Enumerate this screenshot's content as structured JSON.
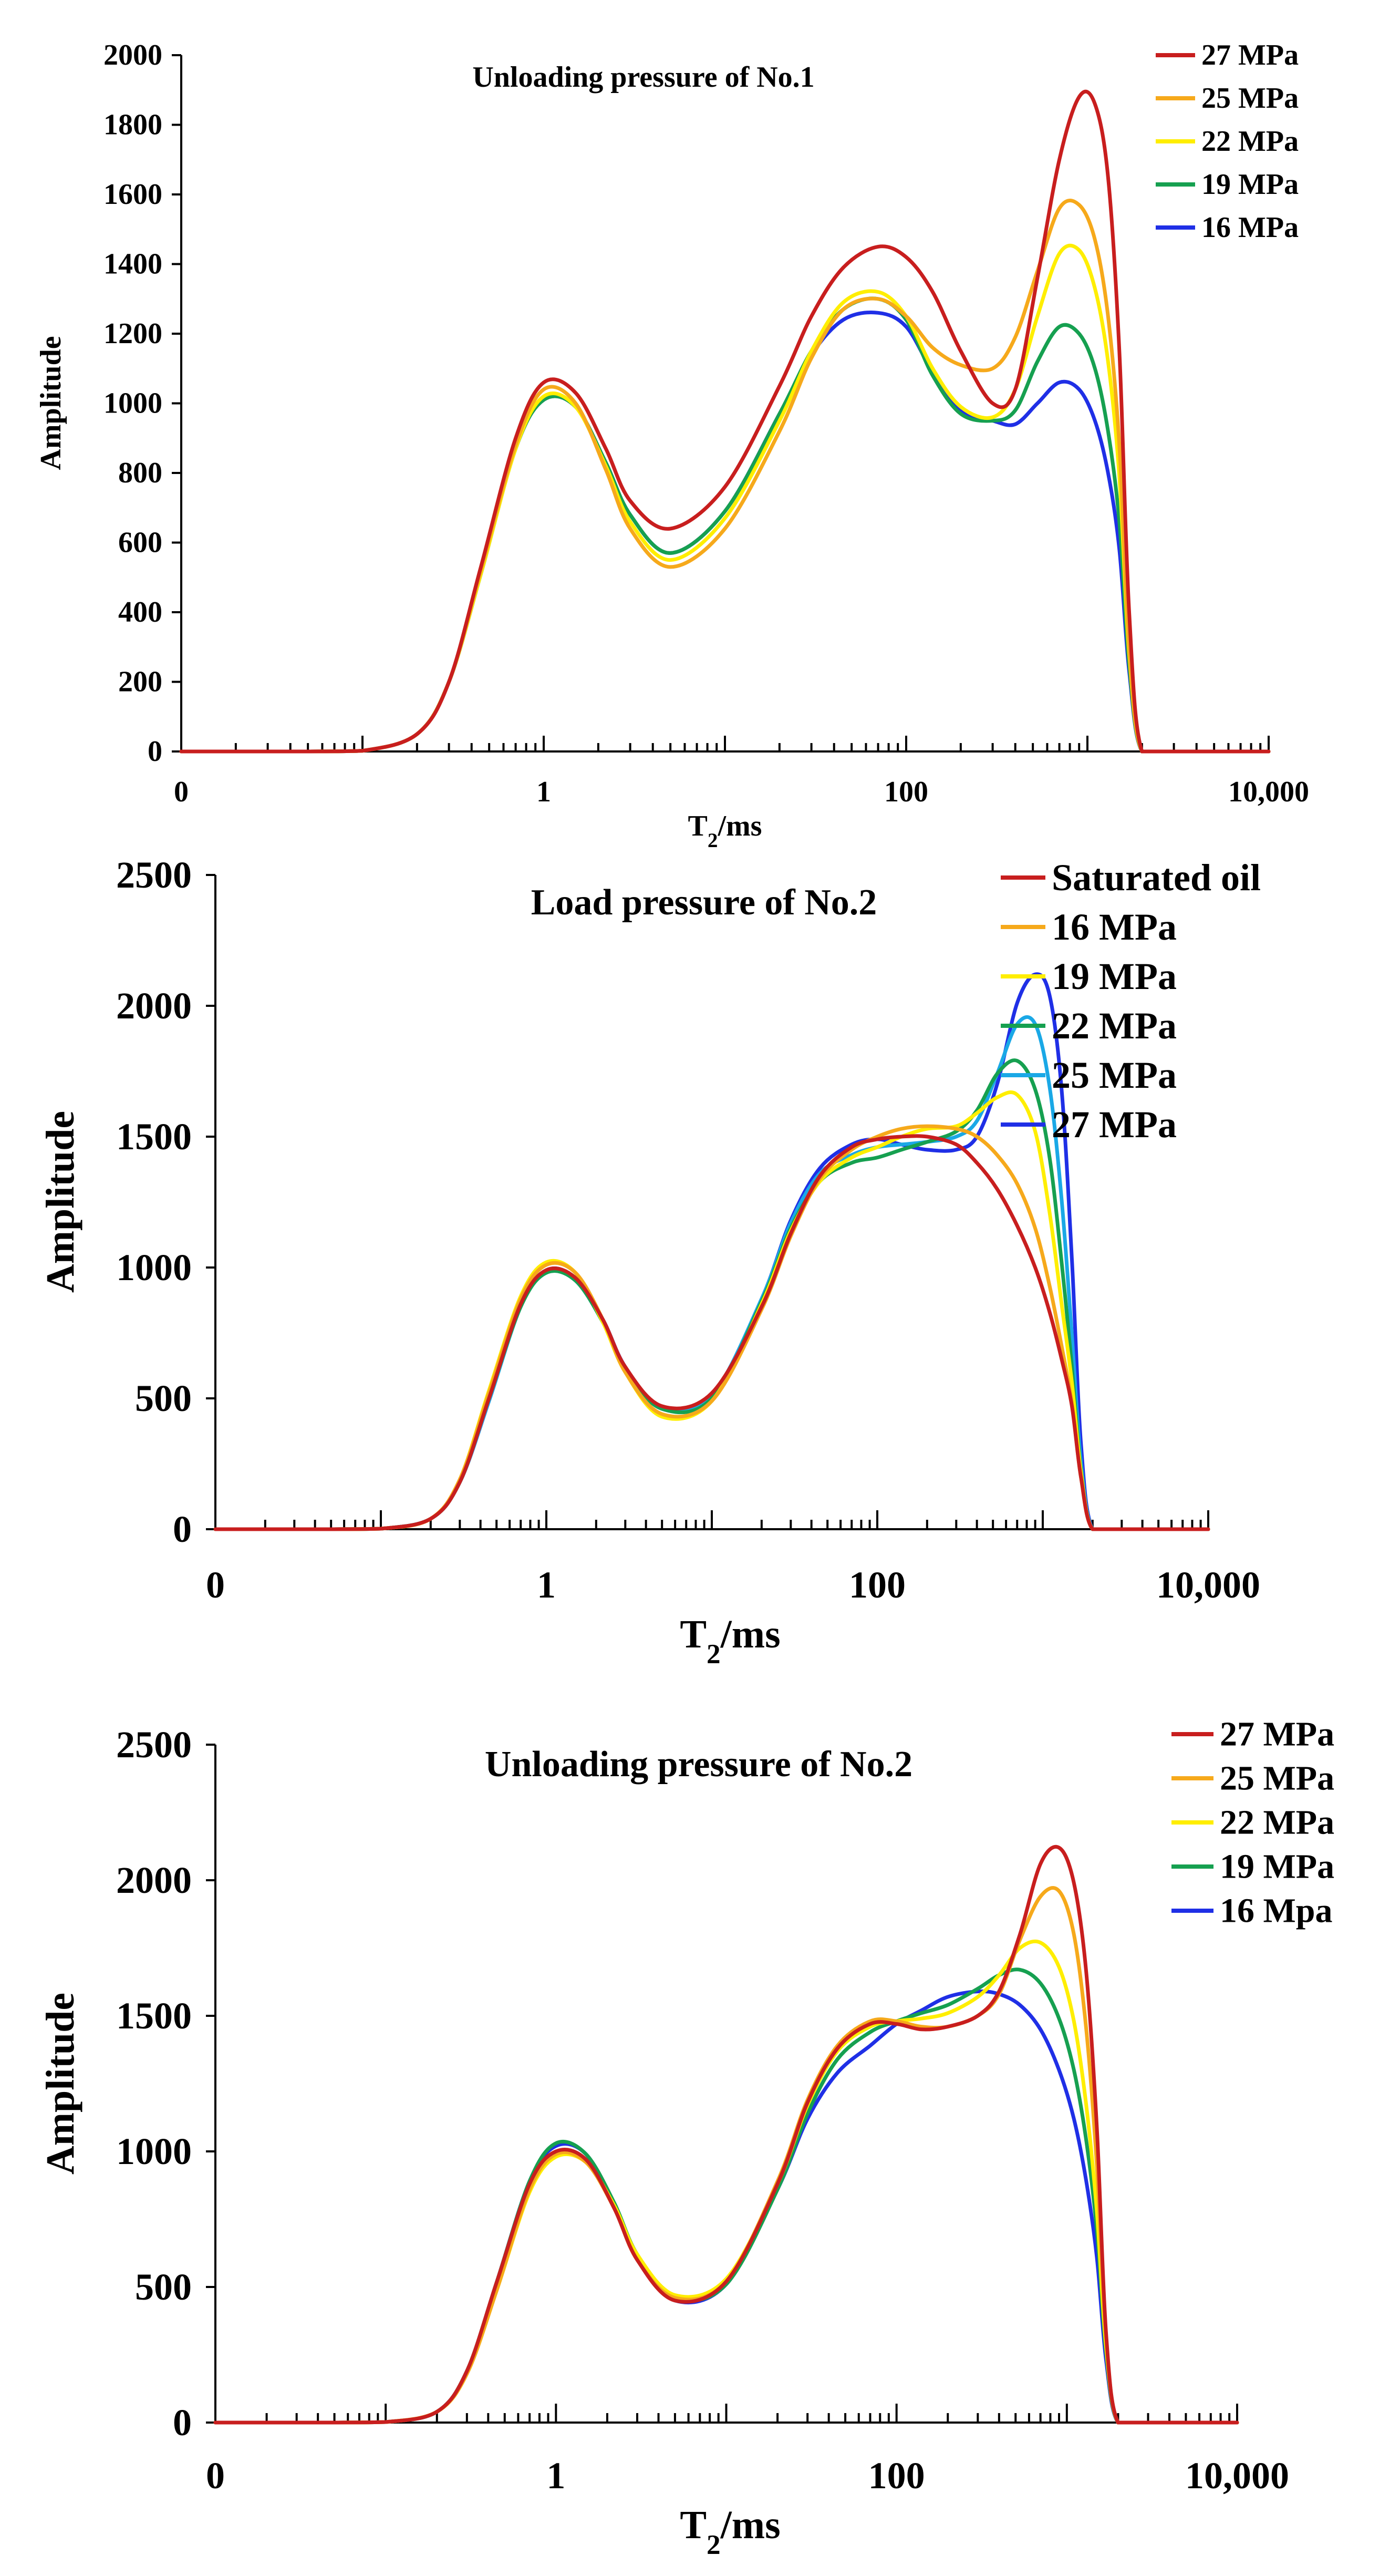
{
  "chart_data": [
    {
      "type": "line",
      "title": "Unloading pressure of No.1",
      "xlabel": "T₂/ms",
      "ylabel": "Amplitude",
      "xscale": "log",
      "xlim": [
        0.01,
        10000
      ],
      "ylim": [
        0,
        2000
      ],
      "xticks": [
        0.01,
        1,
        100,
        10000
      ],
      "xtick_labels": [
        "0",
        "1",
        "100",
        "10,000"
      ],
      "yticks": [
        0,
        200,
        400,
        600,
        800,
        1000,
        1200,
        1400,
        1600,
        1800,
        2000
      ],
      "ytick_labels": [
        "0",
        "200",
        "400",
        "600",
        "800",
        "1000",
        "1200",
        "1400",
        "1600",
        "1800",
        "2000"
      ],
      "grid": false,
      "legend_position": "top-right",
      "x": [
        0.01,
        0.02,
        0.03,
        0.05,
        0.1,
        0.2,
        0.3,
        0.45,
        0.7,
        1,
        1.5,
        2.2,
        3,
        5,
        10,
        20,
        30,
        45,
        70,
        100,
        140,
        200,
        300,
        400,
        530,
        700,
        900,
        1100,
        1300,
        1500,
        1700,
        2000,
        3000,
        5000,
        10000
      ],
      "series": [
        {
          "name": "27 MPa",
          "color": "#c81e1e",
          "values": [
            0,
            0,
            0,
            0,
            2,
            50,
            200,
            530,
            900,
            1060,
            1030,
            870,
            720,
            640,
            760,
            1050,
            1250,
            1390,
            1450,
            1420,
            1320,
            1150,
            1000,
            1040,
            1360,
            1700,
            1880,
            1860,
            1650,
            1150,
            400,
            0,
            0,
            0,
            0
          ]
        },
        {
          "name": "25 MPa",
          "color": "#f6a91b",
          "values": [
            0,
            0,
            0,
            0,
            2,
            50,
            200,
            520,
            880,
            1040,
            1000,
            810,
            640,
            530,
            640,
            920,
            1130,
            1270,
            1300,
            1250,
            1160,
            1110,
            1100,
            1190,
            1380,
            1560,
            1570,
            1470,
            1250,
            880,
            300,
            0,
            0,
            0,
            0
          ]
        },
        {
          "name": "22 MPa",
          "color": "#ffee00",
          "values": [
            0,
            0,
            0,
            0,
            2,
            50,
            200,
            510,
            870,
            1020,
            990,
            820,
            660,
            550,
            670,
            950,
            1150,
            1290,
            1320,
            1250,
            1100,
            990,
            960,
            1040,
            1250,
            1430,
            1440,
            1330,
            1120,
            790,
            280,
            0,
            0,
            0,
            0
          ]
        },
        {
          "name": "19 MPa",
          "color": "#16a050",
          "values": [
            0,
            0,
            0,
            0,
            2,
            50,
            200,
            510,
            870,
            1010,
            990,
            830,
            680,
            570,
            690,
            970,
            1150,
            1270,
            1300,
            1240,
            1080,
            970,
            950,
            980,
            1120,
            1220,
            1200,
            1100,
            920,
            660,
            250,
            0,
            0,
            0,
            0
          ]
        },
        {
          "name": "16 MPa",
          "color": "#1f2fe6",
          "values": [
            0,
            0,
            0,
            0,
            2,
            50,
            200,
            510,
            870,
            1010,
            990,
            830,
            680,
            570,
            690,
            970,
            1140,
            1240,
            1260,
            1220,
            1090,
            980,
            950,
            940,
            1000,
            1060,
            1040,
            950,
            800,
            580,
            230,
            0,
            0,
            0,
            0
          ]
        }
      ]
    },
    {
      "type": "line",
      "title": "Load pressure of No.2",
      "xlabel": "T₂/ms",
      "ylabel": "Amplitude",
      "xscale": "log",
      "xlim": [
        0.01,
        10000
      ],
      "ylim": [
        0,
        2500
      ],
      "xticks": [
        0.01,
        1,
        100,
        10000
      ],
      "xtick_labels": [
        "0",
        "1",
        "100",
        "10,000"
      ],
      "yticks": [
        0,
        500,
        1000,
        1500,
        2000,
        2500
      ],
      "ytick_labels": [
        "0",
        "500",
        "1000",
        "1500",
        "2000",
        "2500"
      ],
      "grid": false,
      "legend_position": "top-right",
      "x": [
        0.01,
        0.02,
        0.03,
        0.05,
        0.1,
        0.2,
        0.3,
        0.45,
        0.7,
        1,
        1.5,
        2.2,
        3,
        5,
        10,
        20,
        30,
        45,
        70,
        100,
        140,
        200,
        300,
        400,
        530,
        700,
        900,
        1100,
        1300,
        1500,
        1700,
        2000,
        3000,
        5000,
        10000
      ],
      "series": [
        {
          "name": "Saturated oil",
          "color": "#c81e1e",
          "values": [
            0,
            0,
            0,
            0,
            2,
            40,
            180,
            500,
            860,
            990,
            960,
            800,
            620,
            470,
            520,
            850,
            1130,
            1350,
            1460,
            1490,
            1500,
            1500,
            1470,
            1400,
            1300,
            1160,
            1000,
            830,
            650,
            470,
            200,
            0,
            0,
            0,
            0
          ]
        },
        {
          "name": "16 MPa",
          "color": "#f6a91b",
          "values": [
            0,
            0,
            0,
            0,
            2,
            40,
            190,
            520,
            880,
            1010,
            980,
            800,
            600,
            440,
            490,
            840,
            1120,
            1340,
            1450,
            1500,
            1530,
            1540,
            1530,
            1500,
            1430,
            1320,
            1150,
            930,
            700,
            480,
            200,
            0,
            0,
            0,
            0
          ]
        },
        {
          "name": "19 MPa",
          "color": "#ffee00",
          "values": [
            0,
            0,
            0,
            0,
            2,
            40,
            190,
            530,
            890,
            1020,
            980,
            790,
            600,
            430,
            490,
            860,
            1140,
            1330,
            1420,
            1460,
            1500,
            1530,
            1540,
            1590,
            1650,
            1660,
            1520,
            1210,
            860,
            560,
            220,
            0,
            0,
            0,
            0
          ]
        },
        {
          "name": "22 MPa",
          "color": "#16a050",
          "values": [
            0,
            0,
            0,
            0,
            2,
            40,
            180,
            500,
            850,
            980,
            950,
            790,
            610,
            460,
            500,
            870,
            1150,
            1330,
            1400,
            1420,
            1450,
            1480,
            1520,
            1600,
            1740,
            1790,
            1680,
            1420,
            1020,
            620,
            230,
            0,
            0,
            0,
            0
          ]
        },
        {
          "name": "25 MPa",
          "color": "#1aa8e6",
          "values": [
            0,
            0,
            0,
            0,
            2,
            40,
            180,
            490,
            850,
            980,
            950,
            790,
            610,
            460,
            510,
            880,
            1170,
            1360,
            1430,
            1460,
            1470,
            1480,
            1500,
            1560,
            1740,
            1930,
            1930,
            1690,
            1260,
            740,
            260,
            0,
            0,
            0,
            0
          ]
        },
        {
          "name": "27 MPa",
          "color": "#1f2fe6",
          "values": [
            0,
            0,
            0,
            0,
            2,
            40,
            180,
            490,
            860,
            990,
            960,
            800,
            620,
            460,
            510,
            880,
            1180,
            1380,
            1470,
            1490,
            1470,
            1450,
            1450,
            1500,
            1700,
            2010,
            2120,
            2040,
            1680,
            1030,
            330,
            0,
            0,
            0,
            0
          ]
        }
      ]
    },
    {
      "type": "line",
      "title": "Unloading pressure of No.2",
      "xlabel": "T₂/ms",
      "ylabel": "Amplitude",
      "xscale": "log",
      "xlim": [
        0.01,
        10000
      ],
      "ylim": [
        0,
        2500
      ],
      "xticks": [
        0.01,
        1,
        100,
        10000
      ],
      "xtick_labels": [
        "0",
        "1",
        "100",
        "10,000"
      ],
      "yticks": [
        0,
        500,
        1000,
        1500,
        2000,
        2500
      ],
      "ytick_labels": [
        "0",
        "500",
        "1000",
        "1500",
        "2000",
        "2500"
      ],
      "grid": false,
      "legend_position": "top-right",
      "x": [
        0.01,
        0.02,
        0.03,
        0.05,
        0.1,
        0.2,
        0.3,
        0.45,
        0.7,
        1,
        1.5,
        2.2,
        3,
        5,
        10,
        20,
        30,
        45,
        70,
        100,
        140,
        200,
        300,
        400,
        530,
        700,
        900,
        1100,
        1300,
        1500,
        1700,
        2000,
        3000,
        5000,
        10000
      ],
      "series": [
        {
          "name": "27 MPa",
          "color": "#c81e1e",
          "values": [
            0,
            0,
            0,
            0,
            2,
            40,
            190,
            520,
            880,
            1000,
            970,
            790,
            600,
            450,
            520,
            880,
            1180,
            1380,
            1470,
            1470,
            1450,
            1460,
            1500,
            1590,
            1800,
            2060,
            2120,
            1990,
            1660,
            1090,
            330,
            0,
            0,
            0,
            0
          ]
        },
        {
          "name": "25 MPa",
          "color": "#f6a91b",
          "values": [
            0,
            0,
            0,
            0,
            2,
            40,
            180,
            490,
            860,
            990,
            960,
            790,
            600,
            460,
            520,
            890,
            1190,
            1390,
            1480,
            1480,
            1460,
            1460,
            1500,
            1580,
            1780,
            1940,
            1960,
            1800,
            1450,
            950,
            310,
            0,
            0,
            0,
            0
          ]
        },
        {
          "name": "22 MPa",
          "color": "#ffee00",
          "values": [
            0,
            0,
            0,
            0,
            2,
            40,
            180,
            490,
            850,
            980,
            960,
            800,
            620,
            470,
            530,
            880,
            1170,
            1370,
            1460,
            1480,
            1490,
            1510,
            1570,
            1650,
            1750,
            1770,
            1680,
            1480,
            1170,
            780,
            280,
            0,
            0,
            0,
            0
          ]
        },
        {
          "name": "19 MPa",
          "color": "#16a050",
          "values": [
            0,
            0,
            0,
            0,
            2,
            40,
            190,
            520,
            890,
            1030,
            990,
            810,
            620,
            460,
            510,
            860,
            1140,
            1340,
            1440,
            1480,
            1510,
            1540,
            1600,
            1650,
            1670,
            1620,
            1490,
            1300,
            1040,
            710,
            260,
            0,
            0,
            0,
            0
          ]
        },
        {
          "name": "16 Mpa",
          "color": "#1f2fe6",
          "values": [
            0,
            0,
            0,
            0,
            2,
            40,
            190,
            520,
            890,
            1020,
            990,
            800,
            610,
            450,
            510,
            860,
            1120,
            1290,
            1390,
            1470,
            1520,
            1570,
            1590,
            1580,
            1540,
            1450,
            1300,
            1120,
            890,
            610,
            230,
            0,
            0,
            0,
            0
          ]
        }
      ]
    }
  ]
}
